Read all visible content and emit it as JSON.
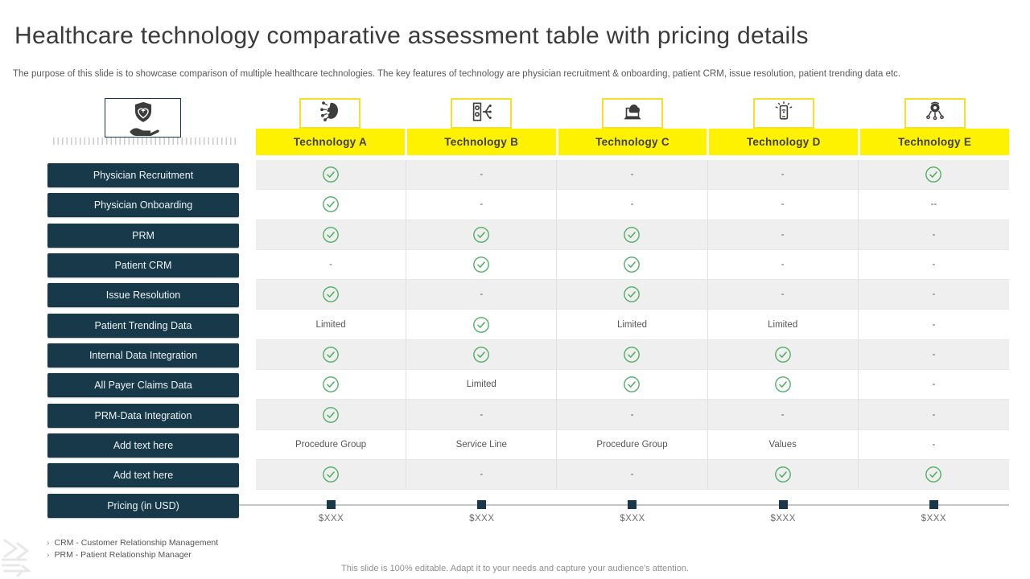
{
  "slide": {
    "title": "Healthcare technology comparative assessment table with pricing details",
    "subtitle": "The purpose of this slide is to showcase comparison of multiple healthcare technologies. The key features of technology are physician recruitment & onboarding, patient CRM,  issue resolution, patient trending data etc.",
    "footer_note": "This slide is 100% editable.  Adapt it to your needs and capture your audience's attention."
  },
  "feature_panel": {
    "icon": "shield-heart-hand-icon"
  },
  "table": {
    "columns": [
      {
        "label": "Technology A",
        "icon": "brain-circuit-icon"
      },
      {
        "label": "Technology B",
        "icon": "server-network-icon"
      },
      {
        "label": "Technology C",
        "icon": "laptop-cloud-icon"
      },
      {
        "label": "Technology D",
        "icon": "smartphone-signal-icon"
      },
      {
        "label": "Technology E",
        "icon": "ai-robot-icon"
      }
    ],
    "check_icon": "check-circle-icon",
    "rows": [
      {
        "label": "Physician Recruitment",
        "cells": [
          "check",
          "-",
          "-",
          "-",
          "check"
        ]
      },
      {
        "label": "Physician Onboarding",
        "cells": [
          "check",
          "-",
          "-",
          "-",
          "--"
        ]
      },
      {
        "label": "PRM",
        "cells": [
          "check",
          "check",
          "check",
          "-",
          "-"
        ]
      },
      {
        "label": "Patient CRM",
        "cells": [
          "-",
          "check",
          "check",
          "-",
          "-"
        ]
      },
      {
        "label": "Issue Resolution",
        "cells": [
          "check",
          "-",
          "check",
          "-",
          "-"
        ]
      },
      {
        "label": "Patient Trending  Data",
        "cells": [
          "Limited",
          "check",
          "Limited",
          "Limited",
          "-"
        ]
      },
      {
        "label": "Internal  Data Integration",
        "cells": [
          "check",
          "check",
          "check",
          "check",
          "-"
        ]
      },
      {
        "label": "All Payer  Claims  Data",
        "cells": [
          "check",
          "Limited",
          "check",
          "check",
          "-"
        ]
      },
      {
        "label": "PRM-Data  Integration",
        "cells": [
          "check",
          "-",
          "-",
          "-",
          "-"
        ]
      },
      {
        "label": "Add text here",
        "cells": [
          "Procedure Group",
          "Service Line",
          "Procedure Group",
          "Values",
          "-"
        ]
      },
      {
        "label": "Add text here",
        "cells": [
          "check",
          "-",
          "-",
          "check",
          "check"
        ]
      }
    ]
  },
  "pricing": {
    "label": "Pricing (in USD)",
    "values": [
      "$XXX",
      "$XXX",
      "$XXX",
      "$XXX",
      "$XXX"
    ]
  },
  "footnotes": [
    "CRM  - Customer Relationship Management",
    "PRM  - Patient Relationship Manager"
  ],
  "colors": {
    "teal": "#17394a",
    "yellow": "#fff200",
    "green": "#4fae63",
    "row_alt": "#efeff0"
  }
}
